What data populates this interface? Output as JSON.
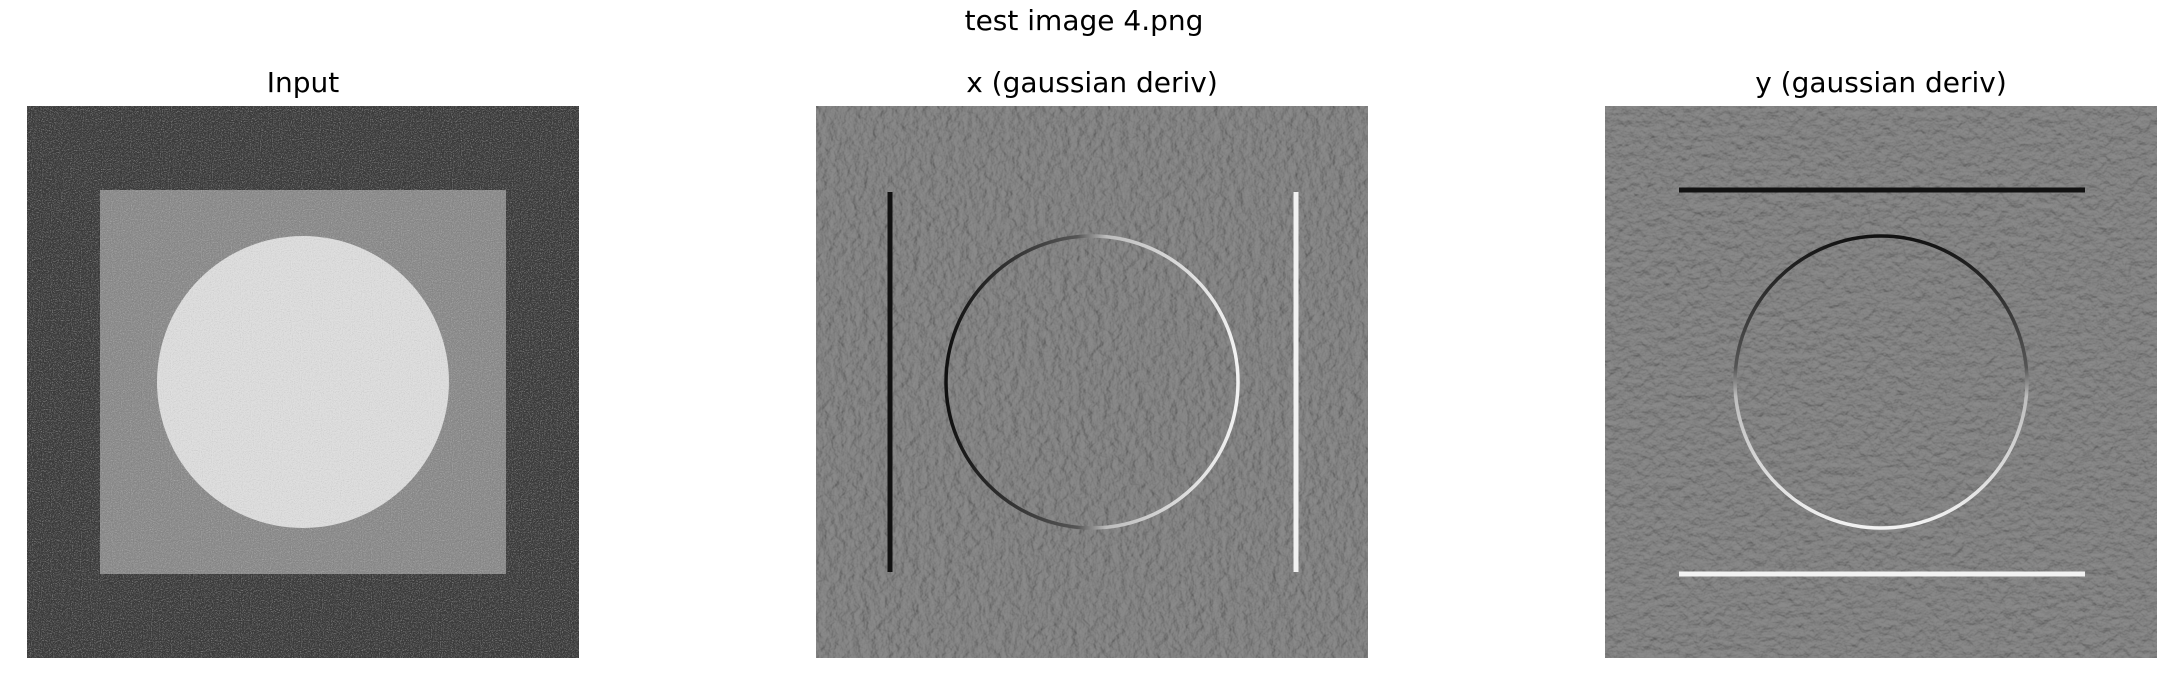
{
  "figure": {
    "suptitle": "test image 4.png"
  },
  "panels": [
    {
      "title": "Input"
    },
    {
      "title": "x (gaussian deriv)"
    },
    {
      "title": "y (gaussian deriv)"
    }
  ],
  "colors": {
    "background": "#ffffff",
    "input_dark": "#3c3c3c",
    "input_square": "#8b8b8b",
    "input_circle": "#dcdcdc",
    "deriv_gray": "#8a8a8a",
    "edge_dark": "#111111",
    "edge_light": "#f2f2f2"
  }
}
